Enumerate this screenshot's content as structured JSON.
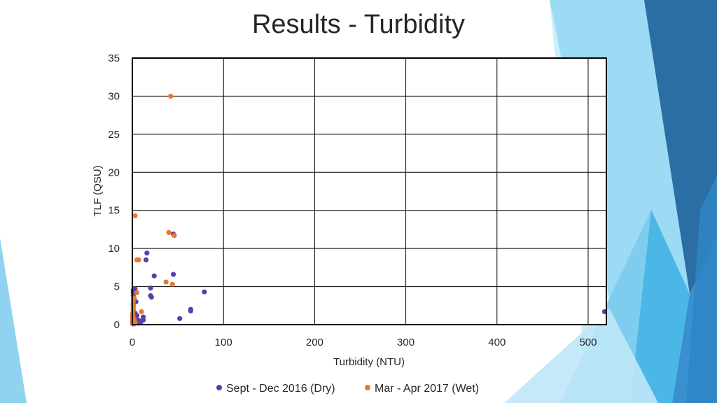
{
  "slide": {
    "title": "Results - Turbidity"
  },
  "colors": {
    "dry": "#5b3fa7",
    "wet": "#e8782f",
    "grid": "#000000",
    "deco_light": "#8fd3f0",
    "deco_mid": "#3fb3e3",
    "deco_dark": "#2b6ea3"
  },
  "chart_data": {
    "type": "scatter",
    "title": "Results - Turbidity",
    "xlabel": "Turbidity (NTU)",
    "ylabel": "TLF (QSU)",
    "xlim": [
      0,
      520
    ],
    "ylim": [
      0,
      35
    ],
    "xticks": [
      0,
      100,
      200,
      300,
      400,
      500
    ],
    "yticks": [
      0,
      5,
      10,
      15,
      20,
      25,
      30,
      35
    ],
    "grid": true,
    "legend_position": "bottom",
    "series": [
      {
        "name": "Sept - Dec 2016 (Dry)",
        "color": "#5b3fa7",
        "points": [
          [
            518,
            1.7
          ],
          [
            79,
            4.3
          ],
          [
            64,
            1.8
          ],
          [
            64,
            2.0
          ],
          [
            52,
            0.8
          ],
          [
            45,
            6.6
          ],
          [
            45,
            11.9
          ],
          [
            24,
            6.4
          ],
          [
            20,
            4.8
          ],
          [
            20,
            3.8
          ],
          [
            21,
            3.6
          ],
          [
            16,
            9.4
          ],
          [
            15,
            8.5
          ],
          [
            12,
            1.0
          ],
          [
            12,
            0.6
          ],
          [
            10,
            0.5
          ],
          [
            9,
            0.3
          ],
          [
            8,
            0.4
          ],
          [
            7,
            0.2
          ],
          [
            6,
            0.6
          ],
          [
            4,
            3.0
          ],
          [
            3,
            4.7
          ],
          [
            2,
            4.7
          ],
          [
            1,
            4.5
          ],
          [
            1,
            4.2
          ],
          [
            1,
            3.8
          ],
          [
            1,
            2.7
          ],
          [
            1,
            2.3
          ],
          [
            1,
            1.9
          ],
          [
            1,
            1.5
          ],
          [
            0.5,
            1.1
          ],
          [
            0.5,
            0.8
          ],
          [
            0.5,
            0.5
          ],
          [
            0.5,
            0.3
          ],
          [
            0.5,
            0.1
          ],
          [
            2,
            0.2
          ],
          [
            3,
            1.5
          ],
          [
            5,
            1.2
          ]
        ]
      },
      {
        "name": "Mar - Apr 2017 (Wet)",
        "color": "#e8782f",
        "points": [
          [
            42,
            30.0
          ],
          [
            3,
            14.3
          ],
          [
            40,
            12.1
          ],
          [
            46,
            11.7
          ],
          [
            5,
            8.5
          ],
          [
            7,
            8.5
          ],
          [
            37,
            5.6
          ],
          [
            44,
            5.3
          ],
          [
            5,
            4.2
          ],
          [
            10,
            1.7
          ],
          [
            2,
            3.5
          ],
          [
            1,
            3.3
          ],
          [
            1,
            3.0
          ],
          [
            1,
            2.5
          ],
          [
            1,
            2.2
          ],
          [
            1,
            1.9
          ],
          [
            0.5,
            1.5
          ],
          [
            0.5,
            1.3
          ],
          [
            0.5,
            1.0
          ],
          [
            0.5,
            0.8
          ],
          [
            0.5,
            0.6
          ],
          [
            0.5,
            0.4
          ],
          [
            0.5,
            0.2
          ],
          [
            0.5,
            0.1
          ],
          [
            2,
            0.1
          ],
          [
            3,
            0.3
          ],
          [
            2,
            0.6
          ],
          [
            1,
            0.9
          ]
        ]
      }
    ]
  }
}
